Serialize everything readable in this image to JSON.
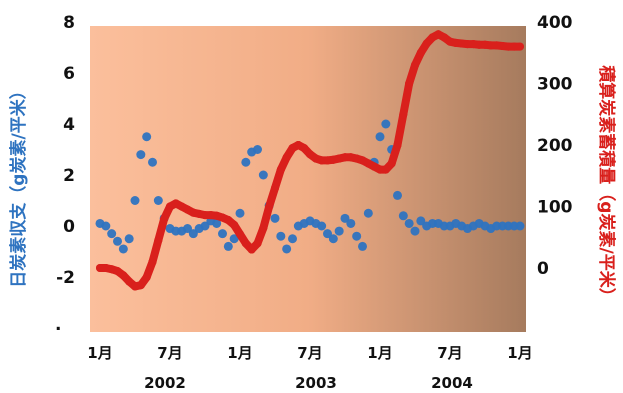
{
  "chart_data": {
    "type": "scatter",
    "x_ticks": [
      "1月",
      "7月",
      "1月",
      "7月",
      "1月",
      "7月",
      "1月"
    ],
    "year_labels": [
      "2002",
      "2003",
      "2004"
    ],
    "ylabel_left": "日炭素収支（g炭素/平米）",
    "ylabel_right": "積算炭素蓄積量（g炭素/平米）",
    "ylim_left": [
      -4,
      8
    ],
    "ylim_right": [
      -100,
      400
    ],
    "yticks_left": [
      "8",
      "6",
      "4",
      "2",
      "0",
      "-2"
    ],
    "yticks_right": [
      "400",
      "300",
      "200",
      "100",
      "0"
    ],
    "left_stray_label": ".",
    "colors": {
      "scatter": "#2e73c0",
      "line": "#d9201c",
      "left_axis_label": "#2e73c0",
      "right_axis_label": "#d9201c",
      "bg_start": "#fbbf9c",
      "bg_mid": "#f1ad86",
      "bg_end": "#a67b5e"
    },
    "series": [
      {
        "name": "日炭素収支",
        "axis": "left",
        "style": "scatter",
        "x": [
          0.0,
          0.5,
          1.0,
          1.5,
          2.0,
          2.5,
          3.0,
          3.5,
          4.0,
          4.5,
          5.0,
          5.5,
          6.0,
          6.5,
          7.0,
          7.5,
          8.0,
          8.5,
          9.0,
          9.5,
          10.0,
          10.5,
          11.0,
          11.5,
          12.0,
          12.5,
          13.0,
          13.5,
          14.0,
          14.5,
          15.0,
          15.5,
          16.0,
          16.5,
          17.0,
          17.5,
          18.0,
          18.5,
          19.0,
          19.5,
          20.0,
          20.5,
          21.0,
          21.5,
          22.0,
          22.5,
          23.0,
          23.5,
          24.0,
          24.5,
          25.0,
          25.5,
          26.0,
          26.5,
          27.0,
          27.5,
          28.0,
          28.5,
          29.0,
          29.5,
          30.0,
          30.5,
          31.0,
          31.5,
          32.0,
          32.5,
          33.0,
          33.5,
          34.0,
          34.5,
          35.0,
          35.5,
          36.0
        ],
        "y": [
          0.1,
          0.0,
          -0.3,
          -0.6,
          -0.9,
          -0.5,
          1.0,
          2.8,
          3.5,
          2.5,
          1.0,
          0.3,
          -0.1,
          -0.2,
          -0.2,
          -0.1,
          -0.3,
          -0.1,
          0.0,
          0.2,
          0.1,
          -0.3,
          -0.8,
          -0.5,
          0.5,
          2.5,
          2.9,
          3.0,
          2.0,
          0.8,
          0.3,
          -0.4,
          -0.9,
          -0.5,
          0.0,
          0.1,
          0.2,
          0.1,
          0.0,
          -0.3,
          -0.5,
          -0.2,
          0.3,
          0.1,
          -0.4,
          -0.8,
          0.5,
          2.5,
          3.5,
          4.0,
          3.0,
          1.2,
          0.4,
          0.1,
          -0.2,
          0.2,
          0.0,
          0.1,
          0.1,
          0.0,
          0.0,
          0.1,
          0.0,
          -0.1,
          0.0,
          0.1,
          0.0,
          -0.1,
          0.0,
          0.0,
          0.0,
          0.0,
          0.0
        ]
      },
      {
        "name": "積算炭素蓄積量",
        "axis": "right",
        "style": "line",
        "x": [
          0.0,
          0.5,
          1.0,
          1.5,
          2.0,
          2.5,
          3.0,
          3.5,
          4.0,
          4.5,
          5.0,
          5.5,
          6.0,
          6.5,
          7.0,
          7.5,
          8.0,
          8.5,
          9.0,
          9.5,
          10.0,
          10.5,
          11.0,
          11.5,
          12.0,
          12.5,
          13.0,
          13.5,
          14.0,
          14.5,
          15.0,
          15.5,
          16.0,
          16.5,
          17.0,
          17.5,
          18.0,
          18.5,
          19.0,
          19.5,
          20.0,
          20.5,
          21.0,
          21.5,
          22.0,
          22.5,
          23.0,
          23.5,
          24.0,
          24.5,
          25.0,
          25.5,
          26.0,
          26.5,
          27.0,
          27.5,
          28.0,
          28.5,
          29.0,
          29.5,
          30.0,
          30.5,
          31.0,
          31.5,
          32.0,
          32.5,
          33.0,
          33.5,
          34.0,
          34.5,
          35.0,
          35.5,
          36.0
        ],
        "y": [
          0,
          0,
          -2,
          -5,
          -12,
          -22,
          -30,
          -28,
          -15,
          10,
          45,
          80,
          100,
          105,
          100,
          95,
          90,
          88,
          86,
          86,
          85,
          82,
          78,
          70,
          55,
          40,
          30,
          40,
          65,
          100,
          130,
          160,
          180,
          195,
          200,
          195,
          185,
          178,
          175,
          175,
          176,
          178,
          180,
          180,
          178,
          175,
          170,
          165,
          160,
          160,
          170,
          200,
          250,
          300,
          330,
          350,
          365,
          375,
          380,
          375,
          368,
          366,
          365,
          364,
          364,
          363,
          363,
          362,
          362,
          361,
          360,
          360,
          360
        ]
      }
    ],
    "legend": "none",
    "grid": false
  }
}
